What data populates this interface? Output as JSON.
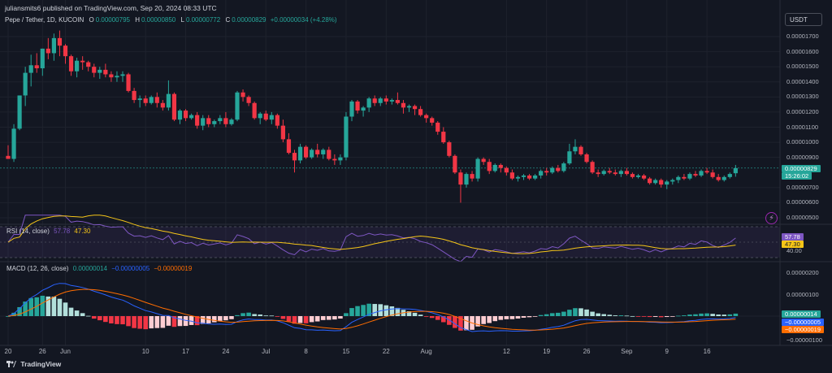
{
  "header": {
    "publisher": "juliansmits6 published on TradingView.com, Sep 20, 2024 08:33 UTC"
  },
  "symbol": {
    "name": "Pepe / Tether, 1D, KUCOIN",
    "o_label": "O",
    "o": "0.00000795",
    "h_label": "H",
    "h": "0.00000850",
    "l_label": "L",
    "l": "0.00000772",
    "c_label": "C",
    "c": "0.00000829",
    "change": "+0.00000034 (+4.28%)"
  },
  "currency": "USDT",
  "price_axis": {
    "labels": [
      "0.00001700",
      "0.00001600",
      "0.00001500",
      "0.00001400",
      "0.00001300",
      "0.00001200",
      "0.00001100",
      "0.00001000",
      "0.00000900",
      "0.00000700",
      "0.00000600",
      "0.00000500"
    ],
    "values": [
      1700,
      1600,
      1500,
      1400,
      1300,
      1200,
      1100,
      1000,
      900,
      700,
      600,
      500
    ],
    "last_price": "0.00000829",
    "countdown": "15:26:02"
  },
  "rsi": {
    "title": "RSI (14, close)",
    "value": "57.78",
    "ma": "47.30",
    "axis_label": "40.00",
    "upper": 70,
    "lower": 30
  },
  "macd": {
    "title": "MACD (12, 26, close)",
    "hist": "0.00000014",
    "macd": "−0.00000005",
    "signal": "−0.00000019",
    "axis_labels": [
      "0.00000200",
      "0.00000100",
      "−0.00000100"
    ],
    "axis_values": [
      200,
      100,
      -100
    ]
  },
  "x_axis": {
    "labels": [
      "20",
      "26",
      "Jun",
      "10",
      "17",
      "24",
      "Jul",
      "8",
      "15",
      "22",
      "Aug",
      "12",
      "19",
      "26",
      "Sep",
      "9",
      "16"
    ],
    "indices": [
      0,
      6,
      10,
      24,
      31,
      38,
      45,
      52,
      59,
      66,
      73,
      87,
      94,
      101,
      108,
      115,
      122
    ]
  },
  "footer": {
    "brand": "TradingView"
  },
  "colors": {
    "up": "#26a69a",
    "down": "#f23645",
    "rsi": "#7e57c2",
    "rsi_ma": "#f5c518",
    "macd": "#2962ff",
    "signal": "#ff6d00",
    "bg": "#131722"
  },
  "icons": {
    "lightning": "lightning-icon",
    "logo": "tradingview-logo-icon"
  },
  "chart_data": {
    "type": "candlestick",
    "note_units": "prices in units of 1e-8 USDT",
    "start_label": "20",
    "ohlc": [
      [
        910,
        980,
        890,
        890
      ],
      [
        890,
        1120,
        870,
        1090
      ],
      [
        1090,
        1310,
        1080,
        1310
      ],
      [
        1310,
        1500,
        1240,
        1460
      ],
      [
        1460,
        1580,
        1370,
        1510
      ],
      [
        1510,
        1590,
        1460,
        1490
      ],
      [
        1490,
        1620,
        1440,
        1620
      ],
      [
        1620,
        1690,
        1550,
        1590
      ],
      [
        1590,
        1720,
        1540,
        1690
      ],
      [
        1690,
        1740,
        1570,
        1640
      ],
      [
        1640,
        1650,
        1520,
        1570
      ],
      [
        1570,
        1580,
        1440,
        1470
      ],
      [
        1470,
        1560,
        1430,
        1540
      ],
      [
        1540,
        1570,
        1480,
        1530
      ],
      [
        1530,
        1540,
        1470,
        1500
      ],
      [
        1500,
        1520,
        1430,
        1460
      ],
      [
        1460,
        1500,
        1420,
        1480
      ],
      [
        1480,
        1520,
        1430,
        1450
      ],
      [
        1450,
        1470,
        1400,
        1430
      ],
      [
        1430,
        1470,
        1400,
        1440
      ],
      [
        1440,
        1470,
        1400,
        1450
      ],
      [
        1450,
        1460,
        1330,
        1340
      ],
      [
        1340,
        1360,
        1260,
        1280
      ],
      [
        1280,
        1310,
        1230,
        1290
      ],
      [
        1290,
        1310,
        1240,
        1260
      ],
      [
        1260,
        1310,
        1250,
        1300
      ],
      [
        1300,
        1330,
        1230,
        1260
      ],
      [
        1260,
        1280,
        1210,
        1230
      ],
      [
        1230,
        1410,
        1210,
        1320
      ],
      [
        1320,
        1330,
        1140,
        1150
      ],
      [
        1150,
        1220,
        1120,
        1210
      ],
      [
        1210,
        1220,
        1140,
        1160
      ],
      [
        1160,
        1190,
        1150,
        1180
      ],
      [
        1180,
        1200,
        1090,
        1110
      ],
      [
        1110,
        1180,
        1080,
        1160
      ],
      [
        1160,
        1180,
        1100,
        1120
      ],
      [
        1120,
        1150,
        1100,
        1140
      ],
      [
        1140,
        1180,
        1120,
        1160
      ],
      [
        1160,
        1200,
        1100,
        1120
      ],
      [
        1120,
        1160,
        1110,
        1150
      ],
      [
        1150,
        1340,
        1140,
        1330
      ],
      [
        1330,
        1350,
        1270,
        1300
      ],
      [
        1300,
        1310,
        1240,
        1260
      ],
      [
        1260,
        1270,
        1150,
        1160
      ],
      [
        1160,
        1200,
        1120,
        1190
      ],
      [
        1190,
        1210,
        1140,
        1150
      ],
      [
        1150,
        1200,
        1120,
        1180
      ],
      [
        1180,
        1190,
        1090,
        1110
      ],
      [
        1110,
        1150,
        1000,
        1020
      ],
      [
        1020,
        1060,
        920,
        930
      ],
      [
        930,
        950,
        800,
        880
      ],
      [
        880,
        990,
        860,
        970
      ],
      [
        970,
        980,
        890,
        900
      ],
      [
        900,
        960,
        890,
        950
      ],
      [
        950,
        990,
        900,
        920
      ],
      [
        920,
        960,
        890,
        950
      ],
      [
        950,
        970,
        880,
        890
      ],
      [
        890,
        920,
        850,
        880
      ],
      [
        880,
        920,
        850,
        900
      ],
      [
        900,
        1200,
        880,
        1170
      ],
      [
        1170,
        1280,
        1140,
        1270
      ],
      [
        1270,
        1280,
        1190,
        1210
      ],
      [
        1210,
        1240,
        1170,
        1230
      ],
      [
        1230,
        1300,
        1200,
        1290
      ],
      [
        1290,
        1310,
        1240,
        1260
      ],
      [
        1260,
        1300,
        1240,
        1290
      ],
      [
        1290,
        1310,
        1250,
        1270
      ],
      [
        1270,
        1290,
        1250,
        1280
      ],
      [
        1280,
        1330,
        1250,
        1260
      ],
      [
        1260,
        1280,
        1190,
        1230
      ],
      [
        1230,
        1250,
        1200,
        1240
      ],
      [
        1240,
        1250,
        1180,
        1220
      ],
      [
        1220,
        1240,
        1170,
        1180
      ],
      [
        1180,
        1190,
        1130,
        1160
      ],
      [
        1160,
        1170,
        1110,
        1130
      ],
      [
        1130,
        1140,
        1050,
        1070
      ],
      [
        1070,
        1100,
        990,
        1000
      ],
      [
        1000,
        1010,
        900,
        910
      ],
      [
        910,
        920,
        790,
        800
      ],
      [
        800,
        820,
        600,
        720
      ],
      [
        720,
        800,
        700,
        790
      ],
      [
        790,
        810,
        740,
        760
      ],
      [
        760,
        900,
        740,
        890
      ],
      [
        890,
        900,
        850,
        870
      ],
      [
        870,
        890,
        790,
        810
      ],
      [
        810,
        860,
        800,
        850
      ],
      [
        850,
        860,
        800,
        830
      ],
      [
        830,
        840,
        780,
        800
      ],
      [
        800,
        820,
        750,
        760
      ],
      [
        760,
        780,
        740,
        770
      ],
      [
        770,
        790,
        750,
        780
      ],
      [
        780,
        790,
        750,
        760
      ],
      [
        760,
        790,
        750,
        780
      ],
      [
        780,
        820,
        760,
        810
      ],
      [
        810,
        830,
        780,
        800
      ],
      [
        800,
        840,
        790,
        830
      ],
      [
        830,
        850,
        800,
        810
      ],
      [
        810,
        870,
        800,
        860
      ],
      [
        860,
        990,
        850,
        940
      ],
      [
        940,
        1020,
        920,
        970
      ],
      [
        970,
        980,
        910,
        920
      ],
      [
        920,
        930,
        860,
        870
      ],
      [
        870,
        880,
        790,
        800
      ],
      [
        800,
        820,
        770,
        790
      ],
      [
        790,
        820,
        780,
        810
      ],
      [
        810,
        830,
        790,
        800
      ],
      [
        800,
        820,
        780,
        790
      ],
      [
        790,
        820,
        770,
        810
      ],
      [
        810,
        830,
        780,
        790
      ],
      [
        790,
        800,
        760,
        770
      ],
      [
        770,
        790,
        760,
        780
      ],
      [
        780,
        790,
        750,
        760
      ],
      [
        760,
        770,
        720,
        730
      ],
      [
        730,
        760,
        720,
        750
      ],
      [
        750,
        760,
        700,
        720
      ],
      [
        720,
        750,
        690,
        740
      ],
      [
        740,
        760,
        720,
        750
      ],
      [
        750,
        780,
        730,
        770
      ],
      [
        770,
        790,
        750,
        760
      ],
      [
        760,
        800,
        750,
        790
      ],
      [
        790,
        810,
        770,
        780
      ],
      [
        780,
        820,
        770,
        810
      ],
      [
        810,
        830,
        790,
        800
      ],
      [
        800,
        820,
        760,
        770
      ],
      [
        770,
        790,
        740,
        750
      ],
      [
        750,
        780,
        740,
        770
      ],
      [
        770,
        800,
        760,
        790
      ],
      [
        795,
        850,
        772,
        829
      ]
    ]
  }
}
